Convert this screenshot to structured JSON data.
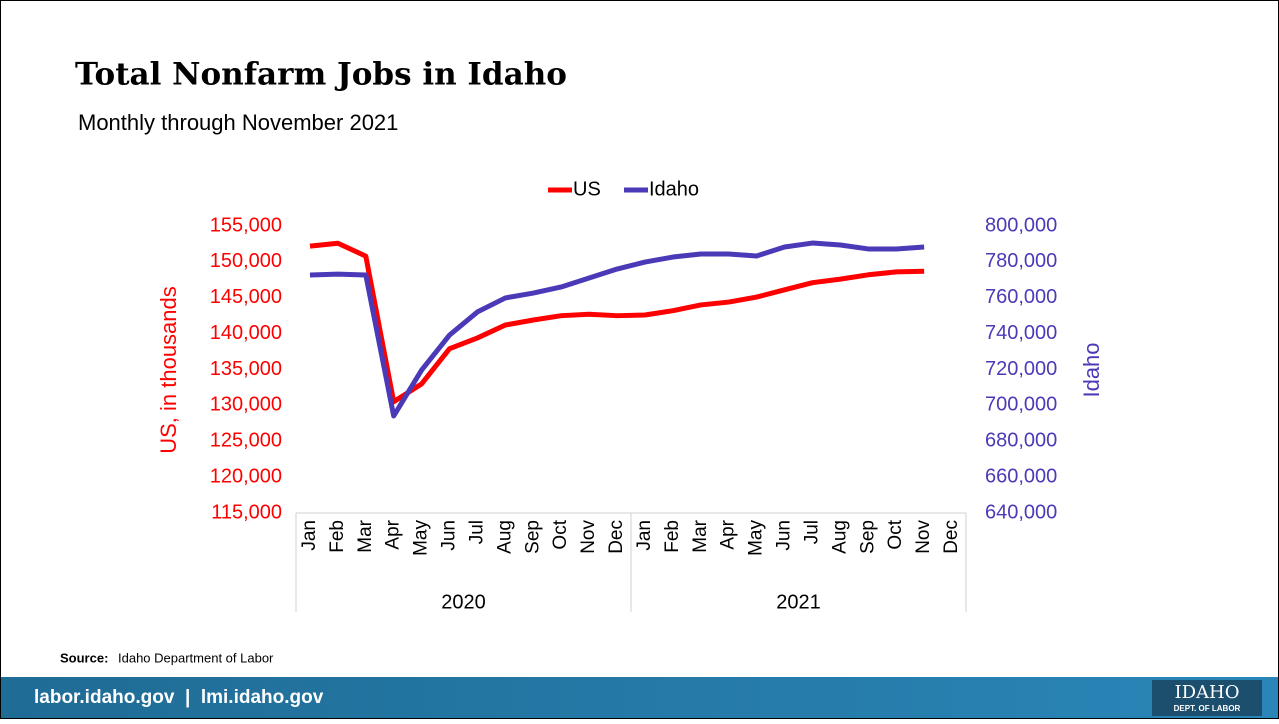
{
  "chart_data": {
    "type": "line",
    "title": "Total Nonfarm Jobs in Idaho",
    "subtitle": "Monthly through November 2021",
    "categories": [
      "Jan",
      "Feb",
      "Mar",
      "Apr",
      "May",
      "Jun",
      "Jul",
      "Aug",
      "Sep",
      "Oct",
      "Nov",
      "Dec",
      "Jan",
      "Feb",
      "Mar",
      "Apr",
      "May",
      "Jun",
      "Jul",
      "Aug",
      "Sep",
      "Oct",
      "Nov",
      "Dec"
    ],
    "category_groups": [
      "2020",
      "2021"
    ],
    "series": [
      {
        "name": "US",
        "color": "#ff0000",
        "axis": "y",
        "values": [
          152200,
          152600,
          150800,
          130500,
          133000,
          137900,
          139400,
          141200,
          141900,
          142500,
          142700,
          142500,
          142600,
          143200,
          144000,
          144400,
          145100,
          146100,
          147100,
          147600,
          148200,
          148600,
          148700,
          null
        ]
      },
      {
        "name": "Idaho",
        "color": "#4b3ab8",
        "axis": "y2",
        "values": [
          772700,
          773200,
          772700,
          694100,
          719700,
          739200,
          752100,
          759900,
          762600,
          766000,
          771000,
          776000,
          779900,
          782700,
          784400,
          784400,
          783300,
          788300,
          790500,
          789400,
          787200,
          787200,
          788300,
          null
        ]
      }
    ],
    "ylabel": "US, in thousands",
    "y2label": "Idaho",
    "ylim": [
      115000,
      155000
    ],
    "yticks": [
      {
        "value": 115000,
        "label": "115,000"
      },
      {
        "value": 120000,
        "label": "120,000"
      },
      {
        "value": 125000,
        "label": "125,000"
      },
      {
        "value": 130000,
        "label": "130,000"
      },
      {
        "value": 135000,
        "label": "135,000"
      },
      {
        "value": 140000,
        "label": "140,000"
      },
      {
        "value": 145000,
        "label": "145,000"
      },
      {
        "value": 150000,
        "label": "150,000"
      },
      {
        "value": 155000,
        "label": "155,000"
      }
    ],
    "y2lim": [
      640000,
      800000
    ],
    "y2ticks": [
      {
        "value": 640000,
        "label": "640,000"
      },
      {
        "value": 660000,
        "label": "660,000"
      },
      {
        "value": 680000,
        "label": "680,000"
      },
      {
        "value": 700000,
        "label": "700,000"
      },
      {
        "value": 720000,
        "label": "720,000"
      },
      {
        "value": 740000,
        "label": "740,000"
      },
      {
        "value": 760000,
        "label": "760,000"
      },
      {
        "value": 780000,
        "label": "780,000"
      },
      {
        "value": 800000,
        "label": "800,000"
      }
    ],
    "legend": "top",
    "grid": false,
    "source_label": "Source:",
    "source": "Idaho Department of Labor"
  },
  "footer": {
    "links": "labor.idaho.gov  |  lmi.idaho.gov",
    "logo": "IDAHO",
    "logo_sub": "DEPT. OF LABOR"
  }
}
